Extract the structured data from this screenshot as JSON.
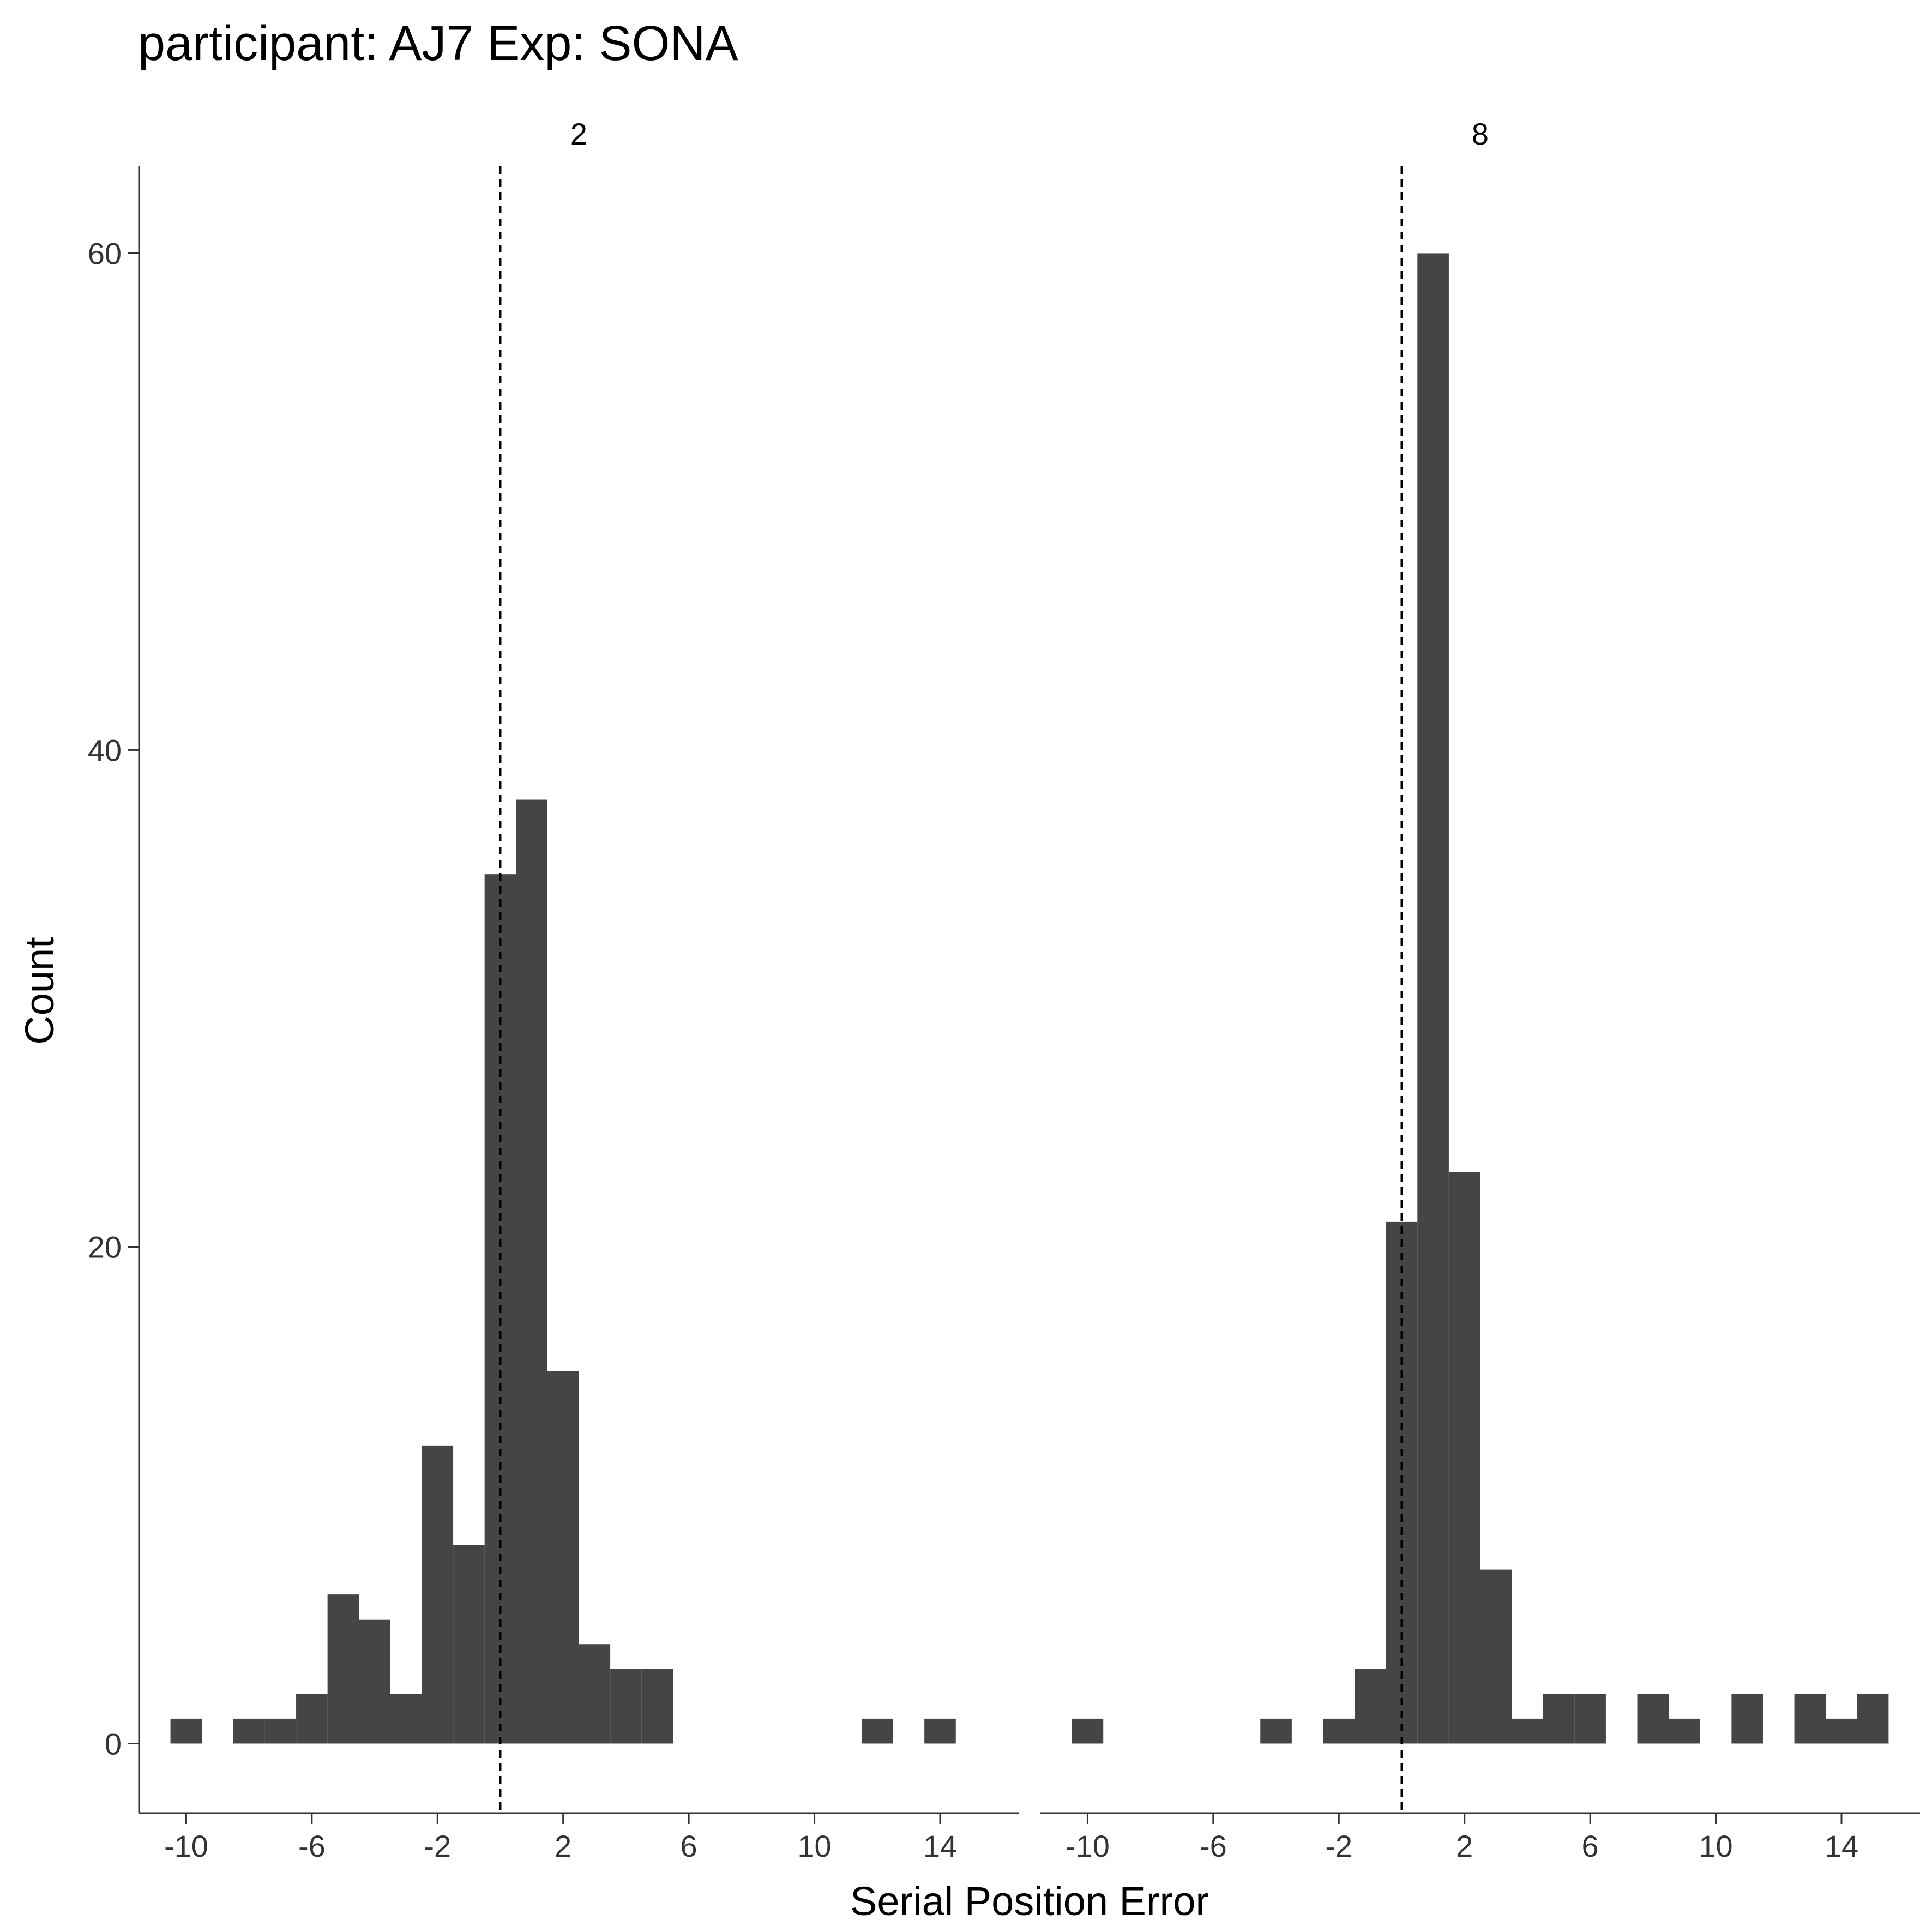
{
  "chart_data": {
    "type": "bar",
    "title": "participant: AJ7 Exp: SONA",
    "xlabel": "Serial Position Error",
    "ylabel": "Count",
    "xlim": [
      -11.5,
      16.5
    ],
    "ylim": [
      -2.8,
      63.5
    ],
    "x_ticks": [
      -10,
      -6,
      -2,
      2,
      6,
      10,
      14
    ],
    "x_tick_labels": [
      "-10",
      "-6",
      "-2",
      "2",
      "6",
      "10",
      "14"
    ],
    "y_ticks": [
      0,
      20,
      40,
      60
    ],
    "y_tick_labels": [
      "0",
      "20",
      "40",
      "60"
    ],
    "bin_width": 1,
    "reference_line_x": 0,
    "grid": false,
    "bar_color": "#454545",
    "panels": [
      {
        "facet_label": "2",
        "bins": [
          {
            "x": -10,
            "count": 1
          },
          {
            "x": -9,
            "count": 0
          },
          {
            "x": -8,
            "count": 1
          },
          {
            "x": -7,
            "count": 1
          },
          {
            "x": -6,
            "count": 2
          },
          {
            "x": -5,
            "count": 6
          },
          {
            "x": -4,
            "count": 5
          },
          {
            "x": -3,
            "count": 2
          },
          {
            "x": -2,
            "count": 12
          },
          {
            "x": -1,
            "count": 8
          },
          {
            "x": 0,
            "count": 35
          },
          {
            "x": 1,
            "count": 38
          },
          {
            "x": 2,
            "count": 15
          },
          {
            "x": 3,
            "count": 4
          },
          {
            "x": 4,
            "count": 3
          },
          {
            "x": 5,
            "count": 3
          },
          {
            "x": 12,
            "count": 1
          },
          {
            "x": 14,
            "count": 1
          }
        ]
      },
      {
        "facet_label": "8",
        "bins": [
          {
            "x": -10,
            "count": 1
          },
          {
            "x": -4,
            "count": 1
          },
          {
            "x": -2,
            "count": 1
          },
          {
            "x": -1,
            "count": 3
          },
          {
            "x": 0,
            "count": 21
          },
          {
            "x": 1,
            "count": 60
          },
          {
            "x": 2,
            "count": 23
          },
          {
            "x": 3,
            "count": 7
          },
          {
            "x": 4,
            "count": 1
          },
          {
            "x": 5,
            "count": 2
          },
          {
            "x": 6,
            "count": 2
          },
          {
            "x": 8,
            "count": 2
          },
          {
            "x": 9,
            "count": 1
          },
          {
            "x": 11,
            "count": 2
          },
          {
            "x": 13,
            "count": 2
          },
          {
            "x": 14,
            "count": 1
          },
          {
            "x": 15,
            "count": 2
          }
        ]
      }
    ]
  }
}
